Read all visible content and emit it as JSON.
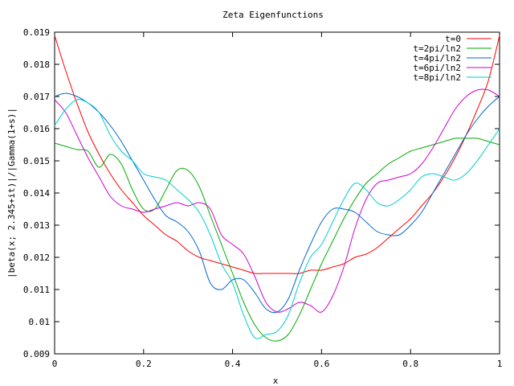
{
  "chart_data": {
    "type": "line",
    "title": "Zeta Eigenfunctions",
    "xlabel": "x",
    "ylabel": "|beta(x; 2.345+it)|/|Gamma(1+s)|",
    "xlim": [
      0,
      1
    ],
    "ylim": [
      0.009,
      0.019
    ],
    "xticks": [
      "0",
      "0.2",
      "0.4",
      "0.6",
      "0.8",
      "1"
    ],
    "yticks": [
      "0.009",
      "0.01",
      "0.011",
      "0.012",
      "0.013",
      "0.014",
      "0.015",
      "0.016",
      "0.017",
      "0.018",
      "0.019"
    ],
    "grid": false,
    "legend_position": "top-right",
    "x": [
      0,
      0.025,
      0.05,
      0.075,
      0.1,
      0.125,
      0.15,
      0.175,
      0.2,
      0.225,
      0.25,
      0.275,
      0.3,
      0.325,
      0.35,
      0.375,
      0.4,
      0.425,
      0.45,
      0.475,
      0.5,
      0.525,
      0.55,
      0.575,
      0.6,
      0.625,
      0.65,
      0.675,
      0.7,
      0.725,
      0.75,
      0.775,
      0.8,
      0.825,
      0.85,
      0.875,
      0.9,
      0.925,
      0.95,
      0.975,
      1
    ],
    "series": [
      {
        "name": "t=0",
        "color": "#ff0000",
        "values": [
          0.0189,
          0.0178,
          0.0168,
          0.0159,
          0.0152,
          0.0146,
          0.0141,
          0.0137,
          0.0133,
          0.013,
          0.0127,
          0.0125,
          0.0122,
          0.012,
          0.0119,
          0.0118,
          0.0117,
          0.0116,
          0.0115,
          0.0115,
          0.0115,
          0.0115,
          0.0115,
          0.0116,
          0.0116,
          0.0117,
          0.0118,
          0.012,
          0.0121,
          0.0123,
          0.0126,
          0.0129,
          0.0132,
          0.0136,
          0.014,
          0.0145,
          0.0151,
          0.0158,
          0.0166,
          0.0175,
          0.0189
        ]
      },
      {
        "name": "t=2pi/ln2",
        "color": "#00aa00",
        "values": [
          0.01555,
          0.01545,
          0.01535,
          0.0153,
          0.0148,
          0.0152,
          0.0149,
          0.0141,
          0.0135,
          0.0135,
          0.0141,
          0.0147,
          0.0147,
          0.0142,
          0.0133,
          0.0124,
          0.0115,
          0.0106,
          0.0099,
          0.0095,
          0.0094,
          0.0096,
          0.0102,
          0.011,
          0.0118,
          0.0125,
          0.0132,
          0.0138,
          0.0143,
          0.0146,
          0.0149,
          0.0151,
          0.0153,
          0.0154,
          0.0155,
          0.0156,
          0.0157,
          0.0157,
          0.0157,
          0.0156,
          0.0155
        ]
      },
      {
        "name": "t=4pi/ln2",
        "color": "#0066cc",
        "values": [
          0.017,
          0.0171,
          0.017,
          0.0168,
          0.0165,
          0.0161,
          0.0156,
          0.015,
          0.0144,
          0.0138,
          0.0133,
          0.0131,
          0.0128,
          0.0122,
          0.0112,
          0.011,
          0.0113,
          0.0113,
          0.0109,
          0.0104,
          0.0103,
          0.0107,
          0.0116,
          0.0124,
          0.0131,
          0.0135,
          0.0135,
          0.0134,
          0.0131,
          0.0128,
          0.0127,
          0.0127,
          0.013,
          0.0134,
          0.014,
          0.0146,
          0.0152,
          0.0158,
          0.0163,
          0.0167,
          0.017
        ]
      },
      {
        "name": "t=6pi/ln2",
        "color": "#cc00cc",
        "values": [
          0.0169,
          0.0165,
          0.0158,
          0.0151,
          0.0145,
          0.0139,
          0.0136,
          0.0135,
          0.0134,
          0.0135,
          0.0136,
          0.0137,
          0.0136,
          0.0137,
          0.0135,
          0.0127,
          0.0124,
          0.0121,
          0.0114,
          0.0106,
          0.0103,
          0.0104,
          0.0106,
          0.0105,
          0.0103,
          0.0108,
          0.0117,
          0.0129,
          0.0138,
          0.0143,
          0.0144,
          0.0145,
          0.0146,
          0.0149,
          0.0154,
          0.016,
          0.0166,
          0.017,
          0.0172,
          0.0172,
          0.017
        ]
      },
      {
        "name": "t=8pi/ln2",
        "color": "#00cccc",
        "values": [
          0.0161,
          0.0166,
          0.0169,
          0.0168,
          0.0165,
          0.0158,
          0.0153,
          0.015,
          0.0146,
          0.0145,
          0.0144,
          0.0141,
          0.0138,
          0.0134,
          0.0127,
          0.0118,
          0.0112,
          0.0102,
          0.0095,
          0.0096,
          0.0097,
          0.0102,
          0.0112,
          0.012,
          0.0124,
          0.0131,
          0.0138,
          0.0143,
          0.0141,
          0.0137,
          0.0136,
          0.0138,
          0.0141,
          0.0145,
          0.0146,
          0.0145,
          0.0144,
          0.0146,
          0.015,
          0.0155,
          0.016
        ]
      }
    ]
  }
}
